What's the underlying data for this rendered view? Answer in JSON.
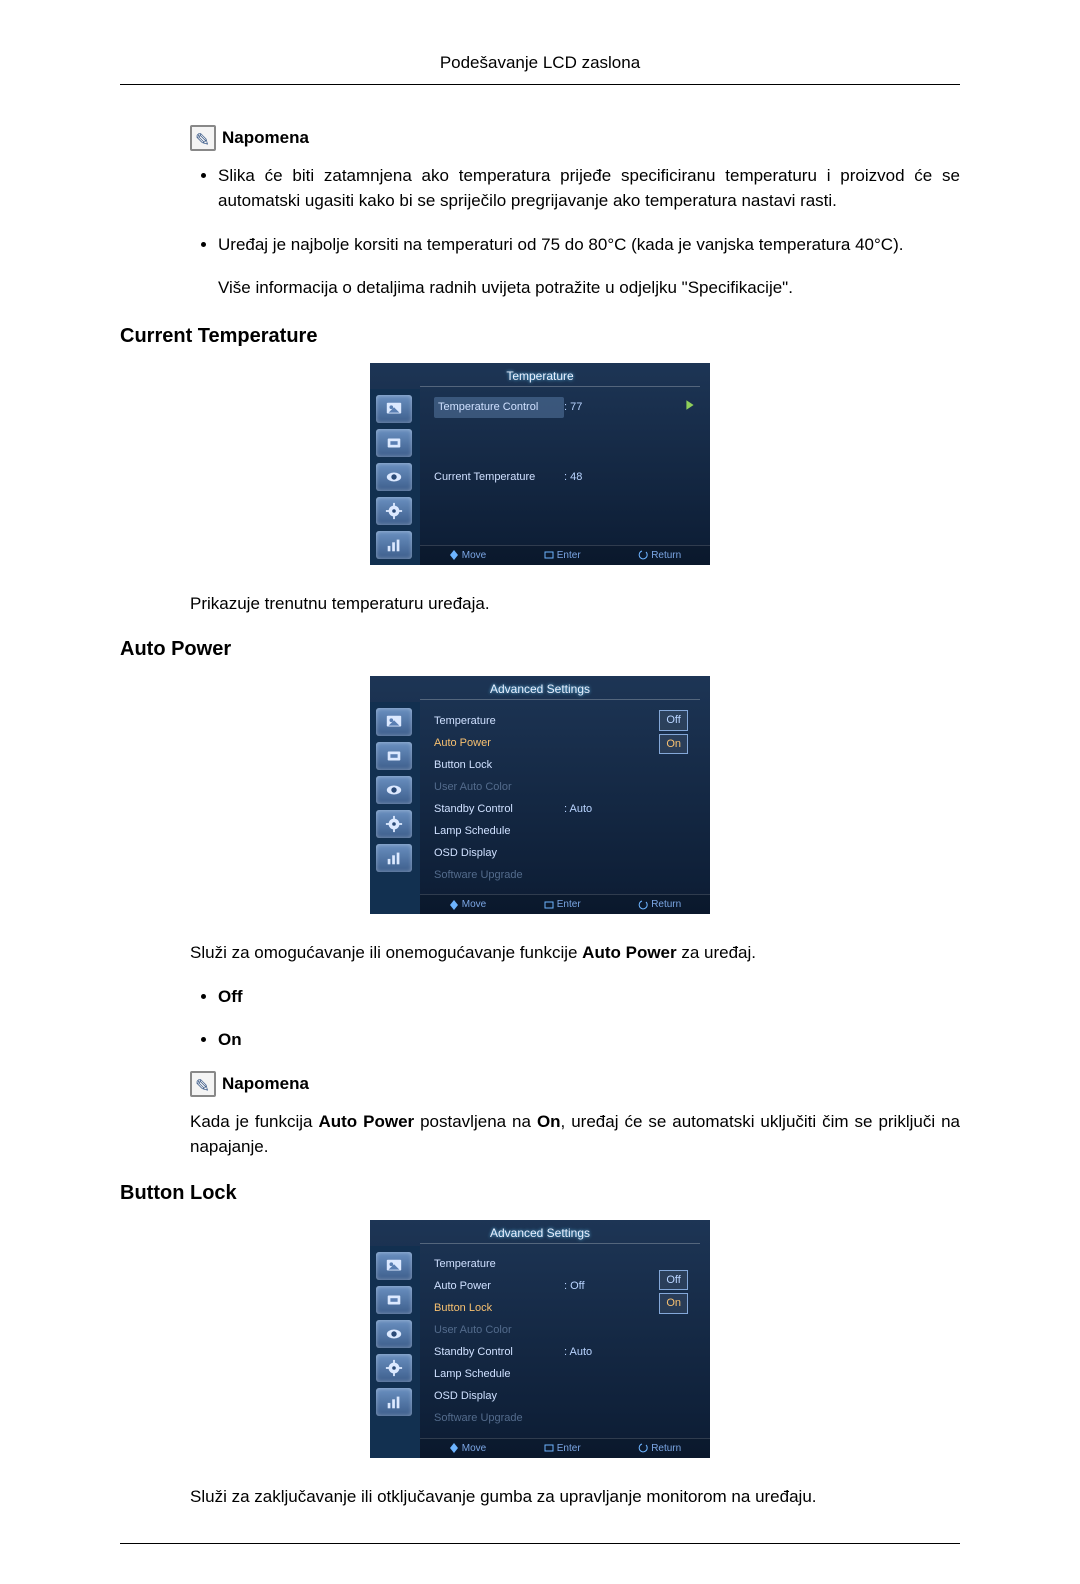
{
  "page_header": "Podešavanje LCD zaslona",
  "note_label": "Napomena",
  "note_bullets": [
    "Slika će biti zatamnjena ako temperatura prijeđe specificiranu temperaturu i proizvod će se automatski ugasiti kako bi se spriječilo pregrijavanje ako temperatura nastavi rasti.",
    "Uređaj je najbolje korsiti na temperaturi od 75 do 80°C (kada je vanjska temperatura 40°C)."
  ],
  "note_followup": "Više informacija o detaljima radnih uvijeta potražite u odjeljku \"Specifikacije\".",
  "sec1": {
    "heading": "Current Temperature",
    "osd": {
      "title": "Temperature",
      "foot": {
        "move": "Move",
        "enter": "Enter",
        "return": "Return"
      },
      "rows": [
        {
          "label": "Temperature Control",
          "val": ": 77",
          "sel": true,
          "arrow": true
        },
        {
          "label": "Current Temperature",
          "val": ": 48",
          "spaced": true
        }
      ],
      "bg_top": "#1d3555",
      "bg_bottom": "#0c1c33",
      "text_color": "#cfe0ff",
      "accent": "#f7c070"
    },
    "desc": "Prikazuje trenutnu temperaturu uređaja."
  },
  "sec2": {
    "heading": "Auto Power",
    "osd": {
      "title": "Advanced Settings",
      "foot": {
        "move": "Move",
        "enter": "Enter",
        "return": "Return"
      },
      "rows": [
        {
          "label": "Temperature"
        },
        {
          "label": "Auto Power",
          "active": true
        },
        {
          "label": "Button Lock"
        },
        {
          "label": "User Auto Color",
          "disabled": true
        },
        {
          "label": "Standby Control",
          "val": ": Auto"
        },
        {
          "label": "Lamp Schedule"
        },
        {
          "label": "OSD Display"
        },
        {
          "label": "Software Upgrade",
          "disabled": true
        }
      ],
      "options": [
        {
          "text": "Off",
          "boxed": true
        },
        {
          "text": "On",
          "hl": true
        }
      ]
    },
    "desc_pre": "Služi za omogućavanje ili onemogućavanje funkcije ",
    "desc_bold": "Auto Power",
    "desc_post": " za uređaj.",
    "opts": [
      "Off",
      "On"
    ],
    "note2_pre": "Kada je funkcija ",
    "note2_b1": "Auto Power",
    "note2_mid": " postavljena na ",
    "note2_b2": "On",
    "note2_post": ", uređaj će se automatski uključiti čim se priključi na napajanje."
  },
  "sec3": {
    "heading": "Button Lock",
    "osd": {
      "title": "Advanced Settings",
      "foot": {
        "move": "Move",
        "enter": "Enter",
        "return": "Return"
      },
      "rows": [
        {
          "label": "Temperature"
        },
        {
          "label": "Auto Power",
          "val": ": Off"
        },
        {
          "label": "Button Lock",
          "active": true
        },
        {
          "label": "User Auto Color",
          "disabled": true
        },
        {
          "label": "Standby Control",
          "val": ": Auto"
        },
        {
          "label": "Lamp Schedule"
        },
        {
          "label": "OSD Display"
        },
        {
          "label": "Software Upgrade",
          "disabled": true
        }
      ],
      "options": [
        {
          "text": "Off",
          "boxed": true
        },
        {
          "text": "On",
          "hl": true
        }
      ]
    },
    "desc": "Služi za zaključavanje ili otključavanje gumba za upravljanje monitorom na uređaju."
  },
  "side_icons": [
    "image",
    "tool",
    "eye",
    "gear",
    "chart"
  ]
}
